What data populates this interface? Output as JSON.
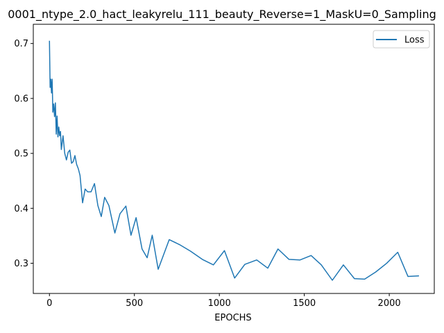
{
  "chart_data": {
    "type": "line",
    "title": "0001_ntype_2.0_hact_leakyrelu_111_beauty_Reverse=1_MaskU=0_Sampling",
    "xlabel": "EPOCHS",
    "ylabel": "",
    "xlim": [
      -95,
      2265
    ],
    "ylim": [
      0.245,
      0.735
    ],
    "xticks": [
      0,
      500,
      1000,
      1500,
      2000
    ],
    "yticks": [
      0.3,
      0.4,
      0.5,
      0.6,
      0.7
    ],
    "grid": false,
    "legend_position": "top-right",
    "series": [
      {
        "name": "Loss",
        "color": "#1f77b4",
        "x": [
          0,
          4,
          8,
          12,
          16,
          20,
          25,
          30,
          35,
          40,
          45,
          50,
          55,
          60,
          65,
          70,
          80,
          90,
          100,
          110,
          120,
          130,
          140,
          150,
          160,
          170,
          180,
          195,
          210,
          225,
          245,
          265,
          285,
          305,
          325,
          350,
          385,
          415,
          450,
          480,
          510,
          545,
          575,
          605,
          640,
          705,
          765,
          830,
          900,
          965,
          1030,
          1090,
          1150,
          1220,
          1285,
          1345,
          1410,
          1475,
          1540,
          1600,
          1665,
          1730,
          1795,
          1855,
          1920,
          1985,
          2050,
          2110,
          2175
        ],
        "y": [
          0.705,
          0.62,
          0.635,
          0.61,
          0.635,
          0.575,
          0.59,
          0.567,
          0.592,
          0.535,
          0.568,
          0.53,
          0.548,
          0.532,
          0.54,
          0.507,
          0.532,
          0.5,
          0.488,
          0.502,
          0.506,
          0.482,
          0.485,
          0.496,
          0.48,
          0.472,
          0.46,
          0.41,
          0.435,
          0.43,
          0.43,
          0.445,
          0.405,
          0.385,
          0.42,
          0.405,
          0.355,
          0.39,
          0.404,
          0.351,
          0.383,
          0.326,
          0.31,
          0.351,
          0.289,
          0.343,
          0.334,
          0.322,
          0.307,
          0.297,
          0.323,
          0.273,
          0.298,
          0.306,
          0.291,
          0.326,
          0.307,
          0.306,
          0.314,
          0.297,
          0.269,
          0.297,
          0.272,
          0.271,
          0.284,
          0.3,
          0.32,
          0.276,
          0.277
        ]
      }
    ]
  }
}
